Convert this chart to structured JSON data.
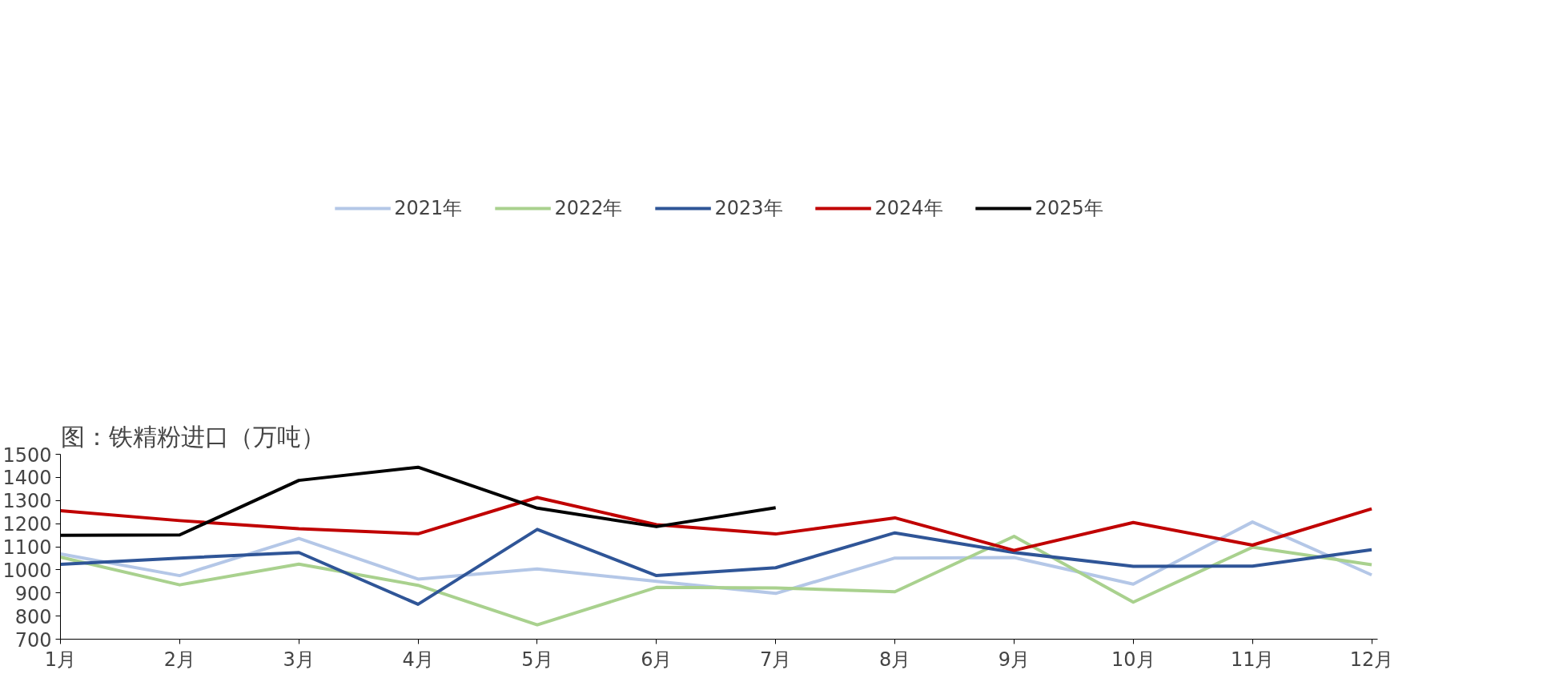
{
  "chart_data": {
    "type": "line",
    "title": "图：铁精粉进口（万吨）",
    "categories": [
      "1月",
      "2月",
      "3月",
      "4月",
      "5月",
      "6月",
      "7月",
      "8月",
      "9月",
      "10月",
      "11月",
      "12月"
    ],
    "series": [
      {
        "name": "2021年",
        "color": "#b4c7e7",
        "values": [
          1069,
          975,
          1136,
          960,
          1004,
          950,
          898,
          1051,
          1053,
          938,
          1207,
          978
        ]
      },
      {
        "name": "2022年",
        "color": "#a9d18e",
        "values": [
          1055,
          935,
          1025,
          933,
          762,
          924,
          922,
          905,
          1145,
          860,
          1098,
          1022
        ]
      },
      {
        "name": "2023年",
        "color": "#2f5597",
        "values": [
          1024,
          1051,
          1075,
          851,
          1175,
          975,
          1009,
          1160,
          1075,
          1015,
          1016,
          1087
        ]
      },
      {
        "name": "2024年",
        "color": "#c00000",
        "values": [
          1256,
          1213,
          1178,
          1156,
          1313,
          1195,
          1155,
          1225,
          1084,
          1205,
          1107,
          1264
        ]
      },
      {
        "name": "2025年",
        "color": "#000000",
        "values": [
          1149,
          1151,
          1387,
          1444,
          1267,
          1187,
          1269,
          null,
          null,
          null,
          null,
          null
        ]
      }
    ],
    "ylim": [
      700,
      1500
    ],
    "yticks": [
      700,
      800,
      900,
      1000,
      1100,
      1200,
      1300,
      1400,
      1500
    ],
    "grid": false,
    "legend": "top",
    "marker": "none",
    "line_style": "solid"
  }
}
